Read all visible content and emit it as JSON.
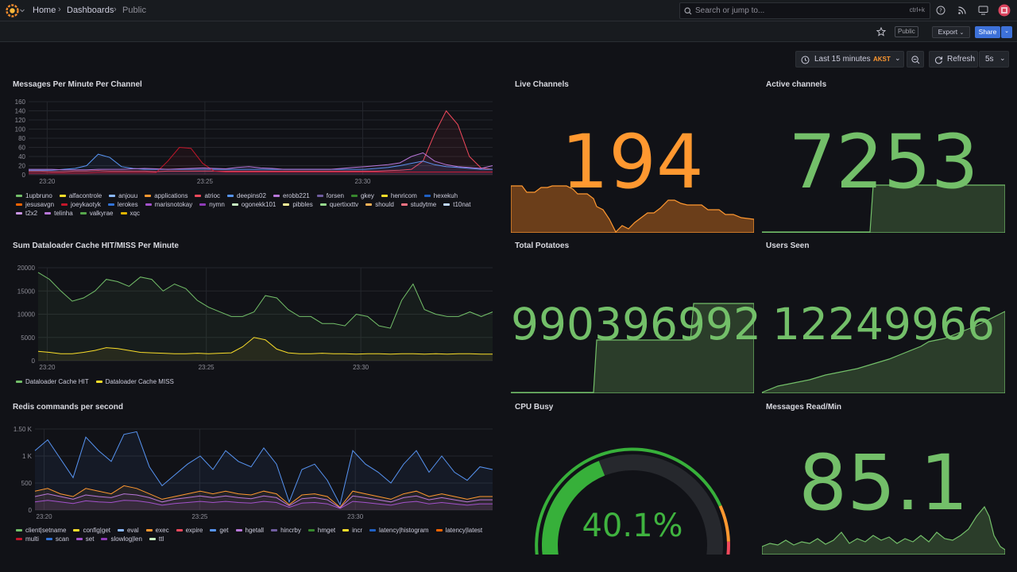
{
  "nav": {
    "breadcrumbs": [
      "Home",
      "Dashboards",
      "Public"
    ],
    "search_placeholder": "Search or jump to...",
    "search_shortcut": "ctrl+k"
  },
  "toolbar": {
    "public_badge": "Public",
    "export_label": "Export",
    "share_label": "Share",
    "time_range": "Last 15 minutes",
    "timezone": "AKST",
    "refresh_label": "Refresh",
    "refresh_interval": "5s"
  },
  "colors": {
    "green": "#73bf69",
    "orange": "#ff9830",
    "red": "#f2495c",
    "yellow": "#fade2a",
    "blue": "#5794f2",
    "purple": "#b877d9"
  },
  "panels": {
    "messages_per_minute": {
      "title": "Messages Per Minute Per Channel",
      "legend": [
        {
          "name": "1upbruno",
          "color": "#73bf69"
        },
        {
          "name": "alfacontrole",
          "color": "#fade2a"
        },
        {
          "name": "anjouu",
          "color": "#8ab8ff"
        },
        {
          "name": "applications",
          "color": "#ff9830"
        },
        {
          "name": "atrioc",
          "color": "#f2495c"
        },
        {
          "name": "deepins02",
          "color": "#5794f2"
        },
        {
          "name": "erobb221",
          "color": "#b877d9"
        },
        {
          "name": "forsen",
          "color": "#705da0"
        },
        {
          "name": "gkey",
          "color": "#37872d"
        },
        {
          "name": "henricom",
          "color": "#fade2a"
        },
        {
          "name": "hexekuh",
          "color": "#1f60c4"
        },
        {
          "name": "jesusavgn",
          "color": "#fa6400"
        },
        {
          "name": "joeykaotyk",
          "color": "#c4162a"
        },
        {
          "name": "lerokes",
          "color": "#3274d9"
        },
        {
          "name": "marisnotokay",
          "color": "#a352cc"
        },
        {
          "name": "nymn",
          "color": "#8f3bb8"
        },
        {
          "name": "ogonekk101",
          "color": "#c8f2c2"
        },
        {
          "name": "pibbles",
          "color": "#fff899"
        },
        {
          "name": "quertixxttv",
          "color": "#96d98d"
        },
        {
          "name": "should",
          "color": "#ffb357"
        },
        {
          "name": "studytme",
          "color": "#ff7383"
        },
        {
          "name": "t10nat",
          "color": "#c0d8ff"
        },
        {
          "name": "t2x2",
          "color": "#ca95e5"
        },
        {
          "name": "telinha",
          "color": "#b877d9"
        },
        {
          "name": "valkyrae",
          "color": "#56a64b"
        },
        {
          "name": "xqc",
          "color": "#e0b400"
        }
      ]
    },
    "dataloader": {
      "title": "Sum Dataloader Cache HIT/MISS Per Minute",
      "legend": [
        {
          "name": "Dataloader Cache HIT",
          "color": "#73bf69"
        },
        {
          "name": "Dataloader Cache MISS",
          "color": "#fade2a"
        }
      ]
    },
    "redis": {
      "title": "Redis commands per second",
      "legend": [
        {
          "name": "client|setname",
          "color": "#73bf69"
        },
        {
          "name": "config|get",
          "color": "#fade2a"
        },
        {
          "name": "eval",
          "color": "#8ab8ff"
        },
        {
          "name": "exec",
          "color": "#ff9830"
        },
        {
          "name": "expire",
          "color": "#f2495c"
        },
        {
          "name": "get",
          "color": "#5794f2"
        },
        {
          "name": "hgetall",
          "color": "#b877d9"
        },
        {
          "name": "hincrby",
          "color": "#705da0"
        },
        {
          "name": "hmget",
          "color": "#37872d"
        },
        {
          "name": "incr",
          "color": "#fade2a"
        },
        {
          "name": "latency|histogram",
          "color": "#1f60c4"
        },
        {
          "name": "latency|latest",
          "color": "#fa6400"
        },
        {
          "name": "multi",
          "color": "#c4162a"
        },
        {
          "name": "scan",
          "color": "#3274d9"
        },
        {
          "name": "set",
          "color": "#a352cc"
        },
        {
          "name": "slowlog|len",
          "color": "#8f3bb8"
        },
        {
          "name": "ttl",
          "color": "#c8f2c2"
        }
      ]
    },
    "live_channels": {
      "title": "Live Channels",
      "value": "194"
    },
    "active_channels": {
      "title": "Active channels",
      "value": "7253"
    },
    "total_potatoes": {
      "title": "Total Potatoes",
      "value": "990396992"
    },
    "users_seen": {
      "title": "Users Seen",
      "value": "12249966"
    },
    "cpu_busy": {
      "title": "CPU Busy",
      "value": "40.1%",
      "percent": 40.1
    },
    "messages_read": {
      "title": "Messages Read/Min",
      "value": "85.1"
    }
  },
  "chart_data": [
    {
      "type": "line",
      "title": "Messages Per Minute Per Channel",
      "ylim": [
        0,
        160
      ],
      "y_ticks": [
        "0",
        "20",
        "40",
        "60",
        "80",
        "100",
        "120",
        "140",
        "160"
      ],
      "x_ticks": [
        "23:20",
        "23:25",
        "23:30"
      ],
      "series": [
        {
          "name": "atrioc",
          "values": [
            8,
            8,
            7,
            7,
            8,
            8,
            9,
            8,
            8,
            8,
            8,
            7,
            8,
            8,
            8,
            8,
            8,
            8,
            8,
            8,
            8,
            8,
            8,
            8,
            8,
            8,
            8,
            8,
            8,
            8,
            8,
            9,
            10,
            12,
            30,
            90,
            140,
            110,
            40,
            15,
            12
          ]
        },
        {
          "name": "deepins02",
          "values": [
            10,
            10,
            10,
            12,
            14,
            20,
            45,
            38,
            18,
            14,
            12,
            12,
            12,
            12,
            12,
            12,
            12,
            12,
            12,
            12,
            12,
            12,
            12,
            12,
            12,
            12,
            12,
            12,
            12,
            12,
            14,
            16,
            20,
            25,
            30,
            22,
            18,
            16,
            14,
            12,
            12
          ]
        },
        {
          "name": "joeykaotyk",
          "values": [
            4,
            4,
            4,
            4,
            4,
            4,
            5,
            5,
            5,
            5,
            5,
            5,
            30,
            60,
            58,
            25,
            8,
            6,
            6,
            6,
            6,
            6,
            6,
            6,
            6,
            6,
            6,
            6,
            6,
            6,
            6,
            6,
            6,
            6,
            6,
            6,
            6,
            6,
            6,
            6,
            6
          ]
        },
        {
          "name": "erobb221",
          "values": [
            12,
            12,
            12,
            11,
            11,
            11,
            12,
            12,
            12,
            13,
            14,
            13,
            12,
            13,
            14,
            15,
            14,
            13,
            16,
            18,
            15,
            14,
            12,
            12,
            12,
            12,
            12,
            14,
            16,
            18,
            20,
            22,
            26,
            40,
            48,
            30,
            22,
            18,
            16,
            14,
            20
          ]
        }
      ]
    },
    {
      "type": "line",
      "title": "Sum Dataloader Cache HIT/MISS Per Minute",
      "ylim": [
        0,
        20000
      ],
      "y_ticks": [
        "0",
        "5000",
        "10000",
        "15000",
        "20000"
      ],
      "x_ticks": [
        "23:20",
        "23:25",
        "23:30"
      ],
      "series": [
        {
          "name": "Dataloader Cache HIT",
          "values": [
            19000,
            17500,
            15000,
            12800,
            13500,
            15000,
            17500,
            17000,
            16000,
            18000,
            17500,
            15000,
            16500,
            15500,
            13000,
            11500,
            10500,
            9500,
            9500,
            10500,
            14000,
            13500,
            11000,
            9500,
            9500,
            8000,
            8000,
            7500,
            10000,
            9500,
            7500,
            7000,
            13000,
            16500,
            11000,
            10000,
            9500,
            9500,
            10500,
            9500,
            10500
          ]
        },
        {
          "name": "Dataloader Cache MISS",
          "values": [
            2000,
            1800,
            1500,
            1500,
            1800,
            2200,
            2800,
            2600,
            2200,
            1800,
            1700,
            1600,
            1500,
            1500,
            1600,
            1500,
            1600,
            1700,
            3000,
            5000,
            4500,
            2500,
            1700,
            1500,
            1500,
            1600,
            1500,
            1500,
            1400,
            1500,
            1500,
            1400,
            1500,
            1500,
            1400,
            1500,
            1400,
            1500,
            1500,
            1400,
            1400
          ]
        }
      ]
    },
    {
      "type": "line",
      "title": "Redis commands per second",
      "ylim": [
        0,
        1500
      ],
      "y_ticks": [
        "0",
        "500",
        "1 K",
        "1.50 K"
      ],
      "x_ticks": [
        "23:20",
        "23:25",
        "23:30"
      ],
      "series": [
        {
          "name": "get",
          "values": [
            1100,
            1300,
            950,
            600,
            1350,
            1100,
            900,
            1400,
            1450,
            800,
            450,
            650,
            850,
            1000,
            750,
            1100,
            900,
            800,
            1150,
            850,
            150,
            750,
            850,
            550,
            100,
            1100,
            850,
            700,
            500,
            850,
            1100,
            700,
            1000,
            700,
            550,
            800,
            750
          ]
        },
        {
          "name": "exec",
          "values": [
            350,
            400,
            300,
            250,
            400,
            350,
            300,
            450,
            400,
            300,
            200,
            250,
            300,
            350,
            300,
            350,
            300,
            280,
            350,
            300,
            100,
            280,
            300,
            250,
            50,
            350,
            300,
            250,
            200,
            300,
            350,
            250,
            300,
            250,
            200,
            250,
            250
          ]
        },
        {
          "name": "hgetall",
          "values": [
            250,
            300,
            250,
            200,
            280,
            250,
            230,
            300,
            280,
            230,
            150,
            200,
            230,
            260,
            230,
            260,
            230,
            210,
            260,
            230,
            80,
            210,
            230,
            190,
            40,
            260,
            230,
            190,
            150,
            230,
            260,
            190,
            230,
            190,
            150,
            190,
            190
          ]
        },
        {
          "name": "set",
          "values": [
            150,
            180,
            150,
            120,
            170,
            150,
            140,
            180,
            170,
            140,
            90,
            120,
            140,
            160,
            140,
            160,
            140,
            130,
            160,
            140,
            50,
            130,
            140,
            115,
            30,
            160,
            140,
            115,
            90,
            140,
            160,
            115,
            140,
            115,
            90,
            115,
            115
          ]
        }
      ]
    }
  ]
}
